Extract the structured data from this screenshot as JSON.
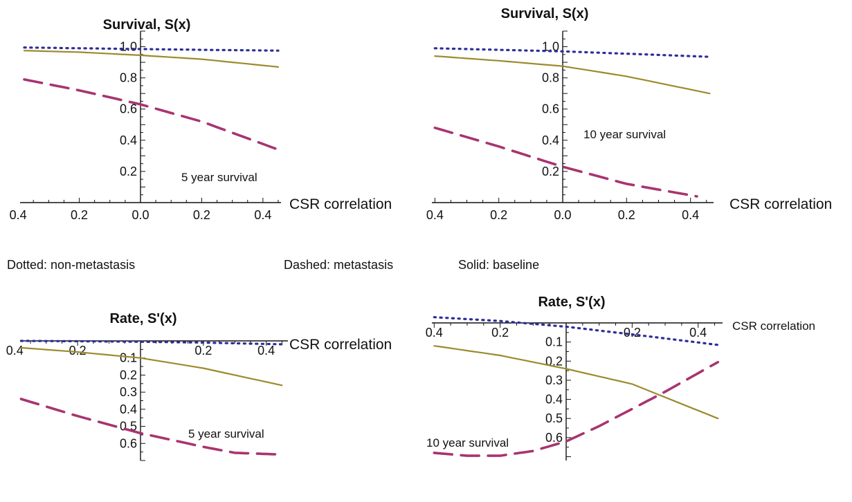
{
  "legend": {
    "dotted": "Dotted: non-metastasis",
    "dashed": "Dashed: metastasis",
    "solid": "Solid: baseline"
  },
  "colors": {
    "dotted": "#2e2e9a",
    "dashed": "#a8346f",
    "solid": "#9c8a2c",
    "axis": "#111111"
  },
  "chart_data": [
    {
      "type": "line",
      "title": "Survival, S(x)",
      "xlabel": "CSR correlation",
      "ylabel": "",
      "annotation": "5 year survival",
      "xlim": [
        -0.38,
        0.45
      ],
      "ylim": [
        0,
        1.1
      ],
      "x_tick_values": [
        -0.4,
        -0.2,
        0.0,
        0.2,
        0.4
      ],
      "x_tick_labels": [
        "0.4",
        "0.2",
        "0.0",
        "0.2",
        "0.4"
      ],
      "y_tick_values": [
        0.2,
        0.4,
        0.6,
        0.8,
        1.0
      ],
      "y_tick_labels": [
        "0.2",
        "0.4",
        "0.6",
        "0.8",
        "1.0"
      ],
      "series": [
        {
          "style": "dotted",
          "x": [
            -0.38,
            -0.2,
            0.0,
            0.2,
            0.45
          ],
          "y": [
            0.995,
            0.99,
            0.985,
            0.98,
            0.975
          ]
        },
        {
          "style": "dashed",
          "x": [
            -0.38,
            -0.2,
            0.0,
            0.2,
            0.45
          ],
          "y": [
            0.79,
            0.72,
            0.63,
            0.52,
            0.34
          ]
        },
        {
          "style": "solid",
          "x": [
            -0.38,
            -0.2,
            0.0,
            0.2,
            0.45
          ],
          "y": [
            0.975,
            0.965,
            0.945,
            0.92,
            0.87
          ]
        }
      ]
    },
    {
      "type": "line",
      "title": "Survival, S(x)",
      "xlabel": "CSR correlation",
      "ylabel": "",
      "annotation": "10 year survival",
      "xlim": [
        -0.4,
        0.46
      ],
      "ylim": [
        0,
        1.1
      ],
      "x_tick_values": [
        -0.4,
        -0.2,
        0.0,
        0.2,
        0.4
      ],
      "x_tick_labels": [
        "0.4",
        "0.2",
        "0.0",
        "0.2",
        "0.4"
      ],
      "y_tick_values": [
        0.2,
        0.4,
        0.6,
        0.8,
        1.0
      ],
      "y_tick_labels": [
        "0.2",
        "0.4",
        "0.6",
        "0.8",
        "1.0"
      ],
      "series": [
        {
          "style": "dotted",
          "x": [
            -0.4,
            -0.2,
            0.0,
            0.2,
            0.46
          ],
          "y": [
            0.99,
            0.98,
            0.97,
            0.955,
            0.935
          ]
        },
        {
          "style": "dashed",
          "x": [
            -0.4,
            -0.2,
            0.0,
            0.2,
            0.42
          ],
          "y": [
            0.48,
            0.36,
            0.23,
            0.12,
            0.04
          ]
        },
        {
          "style": "solid",
          "x": [
            -0.4,
            -0.2,
            0.0,
            0.2,
            0.46
          ],
          "y": [
            0.94,
            0.91,
            0.875,
            0.81,
            0.7
          ]
        }
      ]
    },
    {
      "type": "line",
      "title": "Rate, S'(x)",
      "xlabel": "CSR correlation",
      "ylabel": "",
      "annotation": "5 year survival",
      "xlim": [
        -0.38,
        0.45
      ],
      "ylim": [
        0,
        0.7
      ],
      "x_tick_values": [
        -0.4,
        -0.2,
        0.2,
        0.4
      ],
      "x_tick_labels": [
        "0.4",
        "0.2",
        "0.2",
        "0.4"
      ],
      "y_tick_values": [
        0.1,
        0.2,
        0.3,
        0.4,
        0.5,
        0.6
      ],
      "y_tick_labels": [
        "0.1",
        "0.2",
        "0.3",
        "0.4",
        "0.5",
        "0.6"
      ],
      "series": [
        {
          "style": "dotted",
          "x": [
            -0.38,
            -0.2,
            0.0,
            0.2,
            0.45
          ],
          "y": [
            0.0,
            0.002,
            0.005,
            0.01,
            0.02
          ]
        },
        {
          "style": "dashed",
          "x": [
            -0.38,
            -0.2,
            0.0,
            0.2,
            0.3,
            0.45
          ],
          "y": [
            0.34,
            0.44,
            0.54,
            0.62,
            0.655,
            0.665
          ]
        },
        {
          "style": "solid",
          "x": [
            -0.38,
            -0.2,
            0.0,
            0.2,
            0.45
          ],
          "y": [
            0.04,
            0.065,
            0.1,
            0.16,
            0.26
          ]
        }
      ]
    },
    {
      "type": "line",
      "title": "Rate, S'(x)",
      "xlabel": "CSR correlation",
      "ylabel": "",
      "annotation": "10 year survival",
      "xlim": [
        -0.4,
        0.46
      ],
      "ylim": [
        0,
        0.72
      ],
      "x_tick_values": [
        -0.4,
        -0.2,
        0.2,
        0.4
      ],
      "x_tick_labels": [
        "0.4",
        "0.2",
        "0.2",
        "0.4"
      ],
      "y_tick_values": [
        0.1,
        0.2,
        0.3,
        0.4,
        0.5,
        0.6
      ],
      "y_tick_labels": [
        "0.1",
        "0.2",
        "0.3",
        "0.4",
        "0.5",
        "0.6"
      ],
      "series": [
        {
          "style": "dotted",
          "x": [
            -0.4,
            -0.2,
            0.0,
            0.2,
            0.46
          ],
          "y": [
            -0.03,
            -0.01,
            0.02,
            0.06,
            0.115
          ]
        },
        {
          "style": "dashed",
          "x": [
            -0.4,
            -0.3,
            -0.2,
            -0.1,
            0.0,
            0.1,
            0.2,
            0.3,
            0.46
          ],
          "y": [
            0.68,
            0.695,
            0.695,
            0.67,
            0.62,
            0.54,
            0.45,
            0.36,
            0.205
          ]
        },
        {
          "style": "solid",
          "x": [
            -0.4,
            -0.2,
            0.0,
            0.2,
            0.46
          ],
          "y": [
            0.12,
            0.17,
            0.24,
            0.32,
            0.5
          ]
        }
      ]
    }
  ]
}
